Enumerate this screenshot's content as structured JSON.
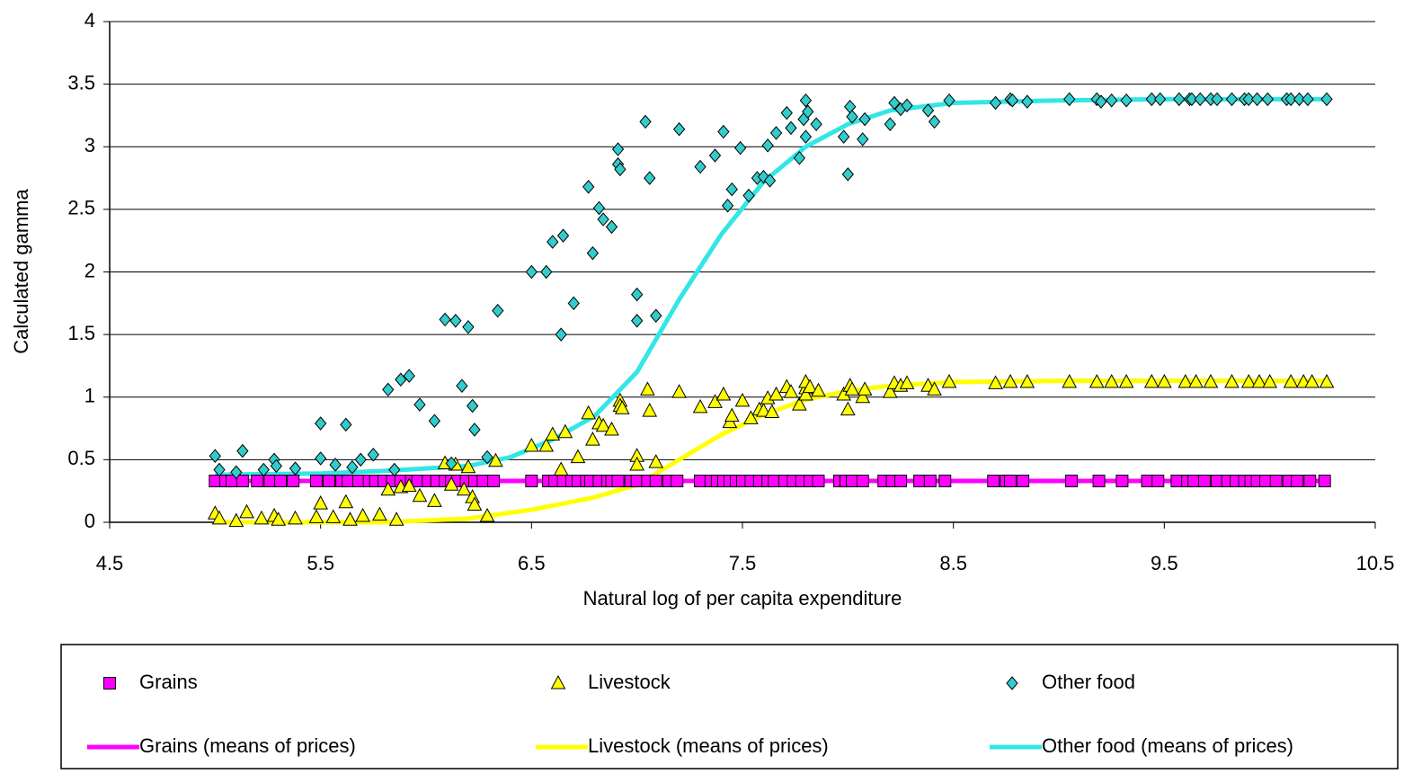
{
  "chart_data": {
    "type": "scatter",
    "x_label": "Natural log of per capita expenditure",
    "y_label": "Calculated gamma",
    "xlim": [
      4.5,
      10.5
    ],
    "xticks": [
      4.5,
      5.5,
      6.5,
      7.5,
      8.5,
      9.5,
      10.5
    ],
    "ylim": [
      0,
      4
    ],
    "yticks": [
      0,
      0.5,
      1,
      1.5,
      2,
      2.5,
      3,
      3.5,
      4
    ],
    "grid": true,
    "legend": "bottom",
    "series": [
      {
        "name": "Grains",
        "marker": "square",
        "color": "#ff00ff",
        "x": [
          5.0,
          5.05,
          5.08,
          5.13,
          5.2,
          5.26,
          5.31,
          5.37,
          5.48,
          5.54,
          5.6,
          5.63,
          5.68,
          5.73,
          5.76,
          5.8,
          5.84,
          5.88,
          5.93,
          5.96,
          6.01,
          6.05,
          6.09,
          6.12,
          6.15,
          6.19,
          6.23,
          6.27,
          6.32,
          6.5,
          6.58,
          6.61,
          6.65,
          6.69,
          6.72,
          6.76,
          6.78,
          6.82,
          6.86,
          6.88,
          6.91,
          6.97,
          7.0,
          7.05,
          7.09,
          7.15,
          7.19,
          7.3,
          7.35,
          7.38,
          7.41,
          7.44,
          7.47,
          7.5,
          7.54,
          7.58,
          7.62,
          7.65,
          7.7,
          7.74,
          7.78,
          7.82,
          7.86,
          7.96,
          7.99,
          8.02,
          8.07,
          8.17,
          8.21,
          8.25,
          8.34,
          8.39,
          8.46,
          8.69,
          8.75,
          8.77,
          8.83,
          9.06,
          9.19,
          9.3,
          9.42,
          9.47,
          9.56,
          9.61,
          9.64,
          9.69,
          9.75,
          9.8,
          9.84,
          9.88,
          9.91,
          9.94,
          9.98,
          10.03,
          10.09,
          10.13,
          10.19,
          10.26
        ],
        "values": [
          0.33,
          0.33,
          0.33,
          0.33,
          0.33,
          0.33,
          0.33,
          0.33,
          0.33,
          0.33,
          0.33,
          0.33,
          0.33,
          0.33,
          0.33,
          0.33,
          0.33,
          0.33,
          0.33,
          0.33,
          0.33,
          0.33,
          0.33,
          0.33,
          0.33,
          0.33,
          0.33,
          0.33,
          0.33,
          0.33,
          0.33,
          0.33,
          0.33,
          0.33,
          0.33,
          0.33,
          0.33,
          0.33,
          0.33,
          0.33,
          0.33,
          0.33,
          0.33,
          0.33,
          0.33,
          0.33,
          0.33,
          0.33,
          0.33,
          0.33,
          0.33,
          0.33,
          0.33,
          0.33,
          0.33,
          0.33,
          0.33,
          0.33,
          0.33,
          0.33,
          0.33,
          0.33,
          0.33,
          0.33,
          0.33,
          0.33,
          0.33,
          0.33,
          0.33,
          0.33,
          0.33,
          0.33,
          0.33,
          0.33,
          0.33,
          0.33,
          0.33,
          0.33,
          0.33,
          0.33,
          0.33,
          0.33,
          0.33,
          0.33,
          0.33,
          0.33,
          0.33,
          0.33,
          0.33,
          0.33,
          0.33,
          0.33,
          0.33,
          0.33,
          0.33,
          0.33,
          0.33,
          0.33
        ]
      },
      {
        "name": "Livestock",
        "marker": "triangle",
        "color": "#ffff00",
        "x": [
          5.0,
          5.02,
          5.1,
          5.15,
          5.22,
          5.28,
          5.3,
          5.38,
          5.48,
          5.5,
          5.56,
          5.62,
          5.64,
          5.7,
          5.78,
          5.82,
          5.86,
          5.88,
          5.92,
          5.97,
          6.04,
          6.09,
          6.12,
          6.14,
          6.18,
          6.2,
          6.22,
          6.23,
          6.29,
          6.33,
          6.5,
          6.57,
          6.6,
          6.64,
          6.66,
          6.72,
          6.77,
          6.79,
          6.82,
          6.84,
          6.88,
          6.92,
          6.92,
          6.93,
          7.0,
          7.0,
          7.05,
          7.06,
          7.09,
          7.2,
          7.3,
          7.37,
          7.41,
          7.44,
          7.45,
          7.5,
          7.54,
          7.58,
          7.6,
          7.62,
          7.64,
          7.66,
          7.71,
          7.73,
          7.77,
          7.8,
          7.8,
          7.8,
          7.82,
          7.86,
          7.98,
          8.0,
          8.01,
          8.02,
          8.07,
          8.08,
          8.2,
          8.22,
          8.25,
          8.28,
          8.38,
          8.41,
          8.48,
          8.7,
          8.77,
          8.85,
          9.05,
          9.18,
          9.25,
          9.32,
          9.44,
          9.5,
          9.6,
          9.65,
          9.72,
          9.82,
          9.9,
          9.95,
          10.0,
          10.1,
          10.16,
          10.2,
          10.27
        ],
        "values": [
          0.07,
          0.03,
          0.01,
          0.08,
          0.03,
          0.05,
          0.02,
          0.03,
          0.04,
          0.15,
          0.04,
          0.16,
          0.02,
          0.05,
          0.06,
          0.26,
          0.02,
          0.28,
          0.29,
          0.21,
          0.17,
          0.47,
          0.3,
          0.46,
          0.26,
          0.44,
          0.2,
          0.14,
          0.05,
          0.49,
          0.61,
          0.61,
          0.7,
          0.42,
          0.72,
          0.52,
          0.87,
          0.66,
          0.79,
          0.77,
          0.74,
          0.97,
          0.93,
          0.91,
          0.53,
          0.46,
          1.06,
          0.89,
          0.48,
          1.04,
          0.92,
          0.96,
          1.02,
          0.8,
          0.85,
          0.97,
          0.83,
          0.9,
          0.89,
          0.99,
          0.88,
          1.02,
          1.08,
          1.04,
          0.94,
          1.07,
          1.02,
          1.12,
          1.08,
          1.05,
          1.02,
          0.9,
          1.09,
          1.06,
          1.0,
          1.06,
          1.04,
          1.11,
          1.09,
          1.11,
          1.09,
          1.06,
          1.12,
          1.11,
          1.12,
          1.12,
          1.12,
          1.12,
          1.12,
          1.12,
          1.12,
          1.12,
          1.12,
          1.12,
          1.12,
          1.12,
          1.12,
          1.12,
          1.12,
          1.12,
          1.12,
          1.12,
          1.12
        ]
      },
      {
        "name": "Other food",
        "marker": "diamond",
        "color": "#33cccc",
        "x": [
          5.0,
          5.02,
          5.1,
          5.13,
          5.23,
          5.28,
          5.29,
          5.38,
          5.5,
          5.5,
          5.57,
          5.62,
          5.65,
          5.69,
          5.75,
          5.82,
          5.85,
          5.88,
          5.92,
          5.97,
          6.04,
          6.09,
          6.12,
          6.14,
          6.17,
          6.2,
          6.22,
          6.23,
          6.29,
          6.34,
          6.5,
          6.57,
          6.6,
          6.64,
          6.65,
          6.7,
          6.77,
          6.79,
          6.82,
          6.84,
          6.88,
          6.91,
          6.91,
          6.92,
          7.0,
          7.0,
          7.04,
          7.06,
          7.09,
          7.2,
          7.3,
          7.37,
          7.41,
          7.43,
          7.45,
          7.49,
          7.53,
          7.57,
          7.6,
          7.62,
          7.63,
          7.66,
          7.71,
          7.73,
          7.77,
          7.79,
          7.8,
          7.8,
          7.81,
          7.85,
          7.98,
          8.0,
          8.01,
          8.02,
          8.07,
          8.08,
          8.2,
          8.22,
          8.25,
          8.28,
          8.38,
          8.41,
          8.48,
          8.7,
          8.77,
          8.78,
          8.85,
          9.05,
          9.18,
          9.2,
          9.25,
          9.32,
          9.44,
          9.48,
          9.57,
          9.62,
          9.63,
          9.67,
          9.72,
          9.75,
          9.82,
          9.88,
          9.9,
          9.94,
          9.99,
          10.08,
          10.1,
          10.14,
          10.18,
          10.27
        ],
        "values": [
          0.53,
          0.42,
          0.4,
          0.57,
          0.42,
          0.5,
          0.45,
          0.43,
          0.51,
          0.79,
          0.46,
          0.78,
          0.44,
          0.5,
          0.54,
          1.06,
          0.42,
          1.14,
          1.17,
          0.94,
          0.81,
          1.62,
          0.47,
          1.61,
          1.09,
          1.56,
          0.93,
          0.74,
          0.52,
          1.69,
          2.0,
          2.0,
          2.24,
          1.5,
          2.29,
          1.75,
          2.68,
          2.15,
          2.51,
          2.42,
          2.36,
          2.98,
          2.86,
          2.82,
          1.82,
          1.61,
          3.2,
          2.75,
          1.65,
          3.14,
          2.84,
          2.93,
          3.12,
          2.53,
          2.66,
          2.99,
          2.61,
          2.75,
          2.76,
          3.01,
          2.73,
          3.11,
          3.27,
          3.15,
          2.91,
          3.22,
          3.08,
          3.37,
          3.28,
          3.18,
          3.08,
          2.78,
          3.32,
          3.24,
          3.06,
          3.22,
          3.18,
          3.35,
          3.3,
          3.33,
          3.29,
          3.2,
          3.37,
          3.35,
          3.38,
          3.37,
          3.36,
          3.38,
          3.38,
          3.36,
          3.37,
          3.37,
          3.38,
          3.38,
          3.38,
          3.38,
          3.38,
          3.38,
          3.38,
          3.38,
          3.38,
          3.38,
          3.38,
          3.38,
          3.38,
          3.38,
          3.38,
          3.38,
          3.38,
          3.38
        ]
      },
      {
        "name": "Grains (means of prices)",
        "color": "#ff00ff",
        "x": [
          5.0,
          10.27
        ],
        "values": [
          0.33,
          0.33
        ]
      },
      {
        "name": "Livestock (means of prices)",
        "color": "#ffff00",
        "x": [
          5.0,
          5.8,
          6.2,
          6.5,
          6.8,
          7.0,
          7.2,
          7.4,
          7.6,
          7.8,
          8.0,
          8.2,
          8.5,
          9.0,
          10.27
        ],
        "values": [
          0,
          0,
          0.03,
          0.1,
          0.2,
          0.3,
          0.5,
          0.7,
          0.86,
          0.98,
          1.05,
          1.09,
          1.12,
          1.13,
          1.13
        ]
      },
      {
        "name": "Other food (means of prices)",
        "color": "#33e6e6",
        "x": [
          5.0,
          5.5,
          5.8,
          6.0,
          6.2,
          6.4,
          6.6,
          6.8,
          7.0,
          7.2,
          7.4,
          7.6,
          7.8,
          8.0,
          8.2,
          8.5,
          9.0,
          9.5,
          10.27
        ],
        "values": [
          0.38,
          0.39,
          0.41,
          0.43,
          0.45,
          0.52,
          0.66,
          0.85,
          1.2,
          1.78,
          2.3,
          2.72,
          3.0,
          3.18,
          3.29,
          3.35,
          3.37,
          3.38,
          3.38
        ]
      }
    ]
  }
}
